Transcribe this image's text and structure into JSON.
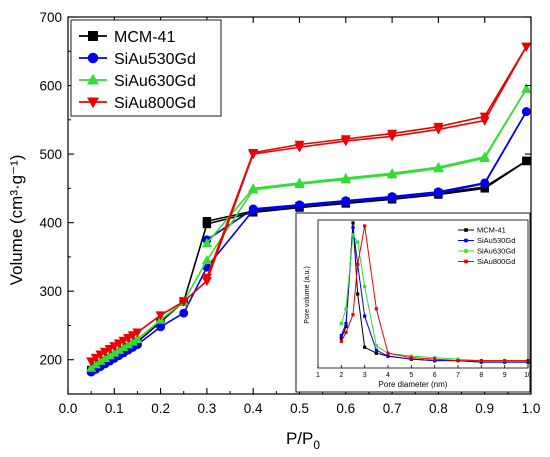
{
  "chart_data": [
    {
      "type": "line",
      "xlabel": "P/P",
      "xlabel_sub": "0",
      "ylabel": "Volume (cm³·g⁻¹)",
      "xlim": [
        0.0,
        1.0
      ],
      "ylim": [
        150,
        700
      ],
      "xticks": [
        "0.0",
        "0.1",
        "0.2",
        "0.3",
        "0.4",
        "0.5",
        "0.6",
        "0.7",
        "0.8",
        "0.9",
        "1.0"
      ],
      "yticks": [
        "200",
        "300",
        "400",
        "500",
        "600",
        "700"
      ],
      "legend_position": "top-left",
      "series": [
        {
          "name": "MCM-41",
          "color": "#000000",
          "marker": "square",
          "adsorption": [
            [
              0.05,
              185
            ],
            [
              0.06,
              190
            ],
            [
              0.07,
              194
            ],
            [
              0.08,
              198
            ],
            [
              0.09,
              202
            ],
            [
              0.1,
              206
            ],
            [
              0.11,
              210
            ],
            [
              0.12,
              214
            ],
            [
              0.13,
              218
            ],
            [
              0.14,
              222
            ],
            [
              0.15,
              226
            ],
            [
              0.2,
              255
            ],
            [
              0.25,
              285
            ],
            [
              0.3,
              398
            ],
            [
              0.4,
              415
            ],
            [
              0.5,
              422
            ],
            [
              0.6,
              428
            ],
            [
              0.7,
              434
            ],
            [
              0.8,
              441
            ],
            [
              0.9,
              450
            ],
            [
              0.99,
              490
            ]
          ],
          "desorption": [
            [
              0.99,
              490
            ],
            [
              0.9,
              452
            ],
            [
              0.8,
              443
            ],
            [
              0.7,
              436
            ],
            [
              0.6,
              430
            ],
            [
              0.5,
              424
            ],
            [
              0.4,
              417
            ],
            [
              0.3,
              402
            ]
          ]
        },
        {
          "name": "SiAu530Gd",
          "color": "#0000ee",
          "marker": "circle",
          "adsorption": [
            [
              0.05,
              182
            ],
            [
              0.06,
              186
            ],
            [
              0.07,
              190
            ],
            [
              0.08,
              194
            ],
            [
              0.09,
              198
            ],
            [
              0.1,
              202
            ],
            [
              0.11,
              206
            ],
            [
              0.12,
              210
            ],
            [
              0.13,
              214
            ],
            [
              0.14,
              218
            ],
            [
              0.15,
              222
            ],
            [
              0.2,
              248
            ],
            [
              0.25,
              268
            ],
            [
              0.3,
              335
            ],
            [
              0.4,
              418
            ],
            [
              0.5,
              424
            ],
            [
              0.6,
              430
            ],
            [
              0.7,
              436
            ],
            [
              0.8,
              443
            ],
            [
              0.9,
              457
            ],
            [
              0.99,
              562
            ]
          ],
          "desorption": [
            [
              0.99,
              562
            ],
            [
              0.9,
              458
            ],
            [
              0.8,
              445
            ],
            [
              0.7,
              438
            ],
            [
              0.6,
              432
            ],
            [
              0.5,
              426
            ],
            [
              0.4,
              420
            ],
            [
              0.3,
              375
            ]
          ]
        },
        {
          "name": "SiAu630Gd",
          "color": "#33dd33",
          "marker": "triangle-up",
          "adsorption": [
            [
              0.05,
              188
            ],
            [
              0.06,
              193
            ],
            [
              0.07,
              198
            ],
            [
              0.08,
              202
            ],
            [
              0.09,
              206
            ],
            [
              0.1,
              210
            ],
            [
              0.11,
              214
            ],
            [
              0.12,
              218
            ],
            [
              0.13,
              222
            ],
            [
              0.14,
              226
            ],
            [
              0.15,
              230
            ],
            [
              0.2,
              258
            ],
            [
              0.25,
              285
            ],
            [
              0.3,
              345
            ],
            [
              0.4,
              448
            ],
            [
              0.5,
              456
            ],
            [
              0.6,
              463
            ],
            [
              0.7,
              470
            ],
            [
              0.8,
              479
            ],
            [
              0.9,
              494
            ],
            [
              0.99,
              595
            ]
          ],
          "desorption": [
            [
              0.99,
              595
            ],
            [
              0.9,
              496
            ],
            [
              0.8,
              481
            ],
            [
              0.7,
              472
            ],
            [
              0.6,
              465
            ],
            [
              0.5,
              458
            ],
            [
              0.4,
              450
            ],
            [
              0.3,
              370
            ]
          ]
        },
        {
          "name": "SiAu800Gd",
          "color": "#ee0000",
          "marker": "triangle-down",
          "adsorption": [
            [
              0.05,
              198
            ],
            [
              0.06,
              203
            ],
            [
              0.07,
              208
            ],
            [
              0.08,
              212
            ],
            [
              0.09,
              216
            ],
            [
              0.1,
              220
            ],
            [
              0.11,
              224
            ],
            [
              0.12,
              228
            ],
            [
              0.13,
              232
            ],
            [
              0.14,
              236
            ],
            [
              0.15,
              240
            ],
            [
              0.2,
              265
            ],
            [
              0.25,
              285
            ],
            [
              0.3,
              315
            ],
            [
              0.4,
              500
            ],
            [
              0.5,
              510
            ],
            [
              0.6,
              519
            ],
            [
              0.7,
              526
            ],
            [
              0.8,
              536
            ],
            [
              0.9,
              549
            ],
            [
              0.99,
              657
            ]
          ],
          "desorption": [
            [
              0.99,
              657
            ],
            [
              0.9,
              555
            ],
            [
              0.8,
              540
            ],
            [
              0.7,
              530
            ],
            [
              0.6,
              522
            ],
            [
              0.5,
              514
            ],
            [
              0.4,
              502
            ],
            [
              0.3,
              320
            ]
          ]
        }
      ]
    },
    {
      "type": "line",
      "xlabel": "Pore diameter (nm)",
      "ylabel": "Pore volume (a.u.)",
      "xlim": [
        1,
        10
      ],
      "ylim": [
        0,
        1
      ],
      "xticks": [
        "1",
        "2",
        "3",
        "4",
        "5",
        "6",
        "7",
        "8",
        "9",
        "10"
      ],
      "legend_position": "top-right",
      "series": [
        {
          "name": "MCM-41",
          "color": "#000000",
          "marker": "square",
          "x": [
            2.0,
            2.2,
            2.5,
            2.7,
            3.0,
            3.5,
            4.0,
            5.0,
            6.0,
            7.0,
            8.0,
            9.0,
            10.0
          ],
          "y": [
            0.2,
            0.28,
            0.98,
            0.5,
            0.14,
            0.1,
            0.08,
            0.06,
            0.05,
            0.05,
            0.04,
            0.04,
            0.04
          ]
        },
        {
          "name": "SiAu530Gd",
          "color": "#0000ee",
          "marker": "square",
          "x": [
            2.0,
            2.2,
            2.5,
            2.7,
            3.0,
            3.5,
            4.0,
            5.0,
            6.0,
            7.0,
            8.0,
            9.0,
            10.0
          ],
          "y": [
            0.22,
            0.3,
            0.95,
            0.7,
            0.35,
            0.12,
            0.08,
            0.06,
            0.05,
            0.05,
            0.04,
            0.04,
            0.04
          ]
        },
        {
          "name": "SiAu630Gd",
          "color": "#33dd33",
          "marker": "square",
          "x": [
            2.0,
            2.2,
            2.5,
            2.7,
            3.0,
            3.5,
            4.0,
            5.0,
            6.0,
            7.0,
            8.0,
            9.0,
            10.0
          ],
          "y": [
            0.3,
            0.4,
            0.9,
            0.85,
            0.55,
            0.15,
            0.1,
            0.08,
            0.07,
            0.06,
            0.05,
            0.05,
            0.05
          ]
        },
        {
          "name": "SiAu800Gd",
          "color": "#ee0000",
          "marker": "square",
          "x": [
            2.0,
            2.2,
            2.5,
            2.7,
            3.0,
            3.5,
            4.0,
            5.0,
            6.0,
            7.0,
            8.0,
            9.0,
            10.0
          ],
          "y": [
            0.18,
            0.24,
            0.36,
            0.7,
            0.96,
            0.4,
            0.1,
            0.07,
            0.06,
            0.05,
            0.05,
            0.05,
            0.05
          ]
        }
      ]
    }
  ]
}
